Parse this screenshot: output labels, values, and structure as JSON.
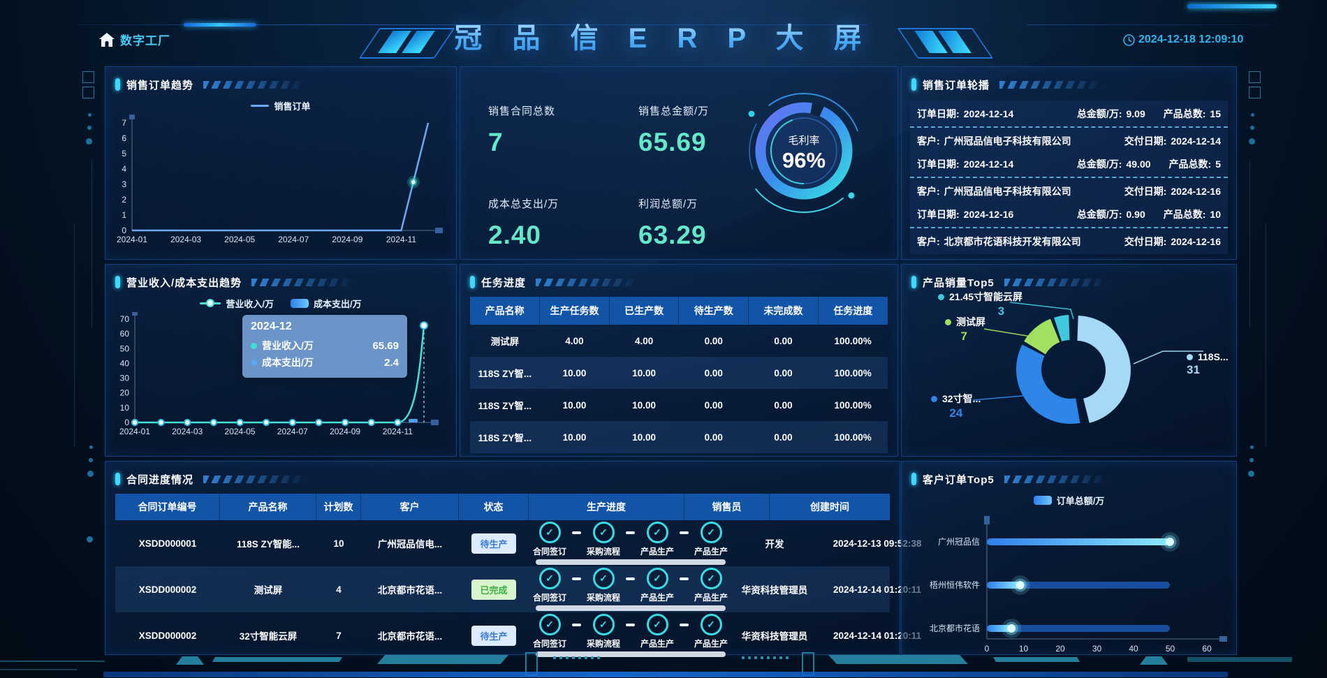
{
  "header": {
    "brand": "数字工厂",
    "title": "冠 品 信 E R P 大 屏",
    "datetime": "2024-12-18 12:09:10"
  },
  "panels": {
    "sales_trend": {
      "title": "销售订单趋势"
    },
    "kpi": {
      "items": [
        {
          "label": "销售合同总数",
          "value": "7"
        },
        {
          "label": "销售总金额/万",
          "value": "65.69"
        },
        {
          "label": "成本总支出/万",
          "value": "2.40"
        },
        {
          "label": "利润总额/万",
          "value": "63.29"
        }
      ],
      "gauge": {
        "label": "毛利率",
        "value": "96%",
        "percent": 96
      }
    },
    "order_carousel": {
      "title": "销售订单轮播",
      "labels": {
        "customer": "客户:",
        "delivery": "交付日期:",
        "order_date": "订单日期:",
        "amount": "总金额/万:",
        "count": "产品总数:"
      },
      "items": [
        {
          "order_date": "2024-12-14",
          "amount": "9.09",
          "count": "15"
        },
        {
          "customer": "广州冠品信电子科技有限公司",
          "delivery": "2024-12-14",
          "order_date": "2024-12-14",
          "amount": "49.00",
          "count": "5"
        },
        {
          "customer": "广州冠品信电子科技有限公司",
          "delivery": "2024-12-16",
          "order_date": "2024-12-16",
          "amount": "0.90",
          "count": "10"
        },
        {
          "customer": "北京都市花语科技开发有限公司",
          "delivery": "2024-12-16"
        }
      ]
    },
    "revenue_trend": {
      "title": "营业收入/成本支出趋势"
    },
    "task_progress": {
      "title": "任务进度",
      "columns": [
        "产品名称",
        "生产任务数",
        "已生产数",
        "待生产数",
        "未完成数",
        "任务进度"
      ],
      "rows": [
        [
          "测试屏",
          "4.00",
          "4.00",
          "0.00",
          "0.00",
          "100.00%"
        ],
        [
          "118S ZY智...",
          "10.00",
          "10.00",
          "0.00",
          "0.00",
          "100.00%"
        ],
        [
          "118S ZY智...",
          "10.00",
          "10.00",
          "0.00",
          "0.00",
          "100.00%"
        ],
        [
          "118S ZY智...",
          "10.00",
          "10.00",
          "0.00",
          "0.00",
          "100.00%"
        ]
      ]
    },
    "product_top5": {
      "title": "产品销量Top5"
    },
    "contract_progress": {
      "title": "合同进度情况",
      "columns": [
        "合同订单编号",
        "产品名称",
        "计划数",
        "客户",
        "状态",
        "生产进度",
        "销售员",
        "创建时间"
      ],
      "steps": [
        "合同签订",
        "采购流程",
        "产品生产",
        "产品生产"
      ],
      "rows": [
        {
          "no": "XSDD000001",
          "product": "118S ZY智能...",
          "qty": "10",
          "customer": "广州冠品信电...",
          "status": "待生产",
          "status_type": "pending",
          "salesman": "开发",
          "created": "2024-12-13 09:52:38"
        },
        {
          "no": "XSDD000002",
          "product": "测试屏",
          "qty": "4",
          "customer": "北京都市花语...",
          "status": "已完成",
          "status_type": "done",
          "salesman": "华资科技管理员",
          "created": "2024-12-14 01:20:11"
        },
        {
          "no": "XSDD000002",
          "product": "32寸智能云屏",
          "qty": "7",
          "customer": "北京都市花语...",
          "status": "待生产",
          "status_type": "pending",
          "salesman": "华资科技管理员",
          "created": "2024-12-14 01:20:11"
        }
      ]
    },
    "customer_top5": {
      "title": "客户订单Top5"
    }
  },
  "chart_data": [
    {
      "id": "sales_orders",
      "type": "line",
      "title": "销售订单趋势",
      "x": [
        "2024-01",
        "2024-02",
        "2024-03",
        "2024-04",
        "2024-05",
        "2024-06",
        "2024-07",
        "2024-08",
        "2024-09",
        "2024-10",
        "2024-11",
        "2024-12"
      ],
      "series": [
        {
          "name": "销售订单",
          "values": [
            0,
            0,
            0,
            0,
            0,
            0,
            0,
            0,
            0,
            0,
            0,
            7
          ]
        }
      ],
      "ylim": [
        0,
        7
      ],
      "ystep": 1,
      "xlabel_every": 2
    },
    {
      "id": "revenue_cost",
      "type": "line",
      "title": "营业收入/成本支出趋势",
      "x": [
        "2024-01",
        "2024-02",
        "2024-03",
        "2024-04",
        "2024-05",
        "2024-06",
        "2024-07",
        "2024-08",
        "2024-09",
        "2024-10",
        "2024-11",
        "2024-12"
      ],
      "series": [
        {
          "name": "营业收入/万",
          "kind": "line",
          "values": [
            0,
            0,
            0,
            0,
            0,
            0,
            0,
            0,
            0,
            0,
            0,
            65.69
          ]
        },
        {
          "name": "成本支出/万",
          "kind": "bar",
          "values": [
            0,
            0,
            0,
            0,
            0,
            0,
            0,
            0,
            0,
            0,
            0,
            2.4
          ]
        }
      ],
      "ylim": [
        0,
        70
      ],
      "ystep": 10,
      "xlabel_every": 2,
      "tooltip": {
        "title": "2024-12",
        "rows": [
          [
            "营业收入/万",
            "65.69"
          ],
          [
            "成本支出/万",
            "2.4"
          ]
        ]
      }
    },
    {
      "id": "product_top5",
      "type": "pie",
      "title": "产品销量Top5",
      "labels": [
        "118S...",
        "32寸智...",
        "测试屏",
        "21.45寸智能云屏"
      ],
      "values": [
        31,
        24,
        7,
        3
      ],
      "colors": [
        "#a6d9f5",
        "#2e86e8",
        "#a2e061",
        "#3fc8de"
      ]
    },
    {
      "id": "customer_top5",
      "type": "bar",
      "title": "客户订单Top5",
      "legend": "订单总额/万",
      "categories": [
        "广州冠品信",
        "梧州恒伟软件",
        "北京都市花语"
      ],
      "values": [
        49.9,
        9.09,
        6.7
      ],
      "xlim": [
        0,
        60
      ],
      "xstep": 10
    }
  ],
  "colors": {
    "accent": "#3fd9ff",
    "kpi_value": "#63e8c8",
    "clock": "#2fb6f0",
    "table_header": "#1254a8",
    "badge_pending_bg": "#dcebff",
    "badge_pending_text": "#3a7bd5",
    "badge_done_bg": "#d9f5cd",
    "badge_done_text": "#3cb043",
    "tooltip_dots": [
      "#3fe0d0",
      "#5aa6f0"
    ]
  }
}
